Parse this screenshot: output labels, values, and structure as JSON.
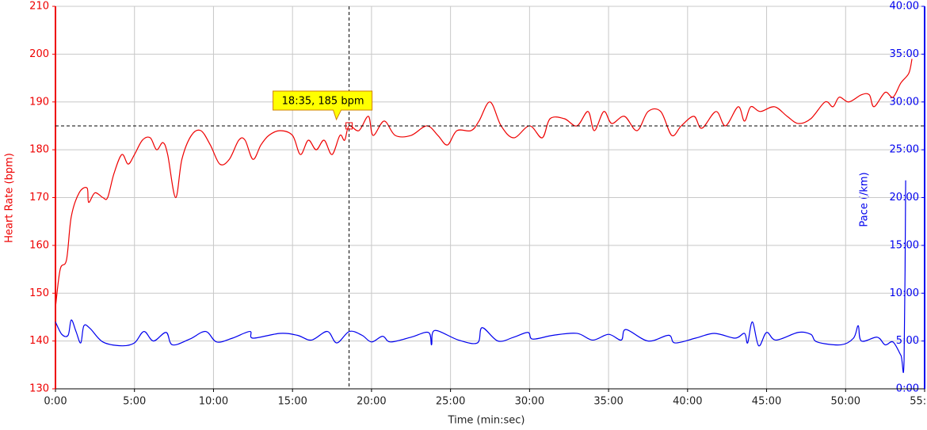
{
  "chart_data": {
    "type": "line",
    "x_label": "Time (min:sec)",
    "y_label": "Heart Rate (bpm)",
    "y2_label": "Pace (/km)",
    "xlim": [
      0,
      55
    ],
    "xticks": [
      {
        "value": 0,
        "label": "0:00"
      },
      {
        "value": 5,
        "label": "5:00"
      },
      {
        "value": 10,
        "label": "10:00"
      },
      {
        "value": 15,
        "label": "15:00"
      },
      {
        "value": 20,
        "label": "20:00"
      },
      {
        "value": 25,
        "label": "25:00"
      },
      {
        "value": 30,
        "label": "30:00"
      },
      {
        "value": 35,
        "label": "35:00"
      },
      {
        "value": 40,
        "label": "40:00"
      },
      {
        "value": 45,
        "label": "45:00"
      },
      {
        "value": 50,
        "label": "50:00"
      },
      {
        "value": 55,
        "label": "55:00"
      }
    ],
    "ylim": [
      130,
      210
    ],
    "yticks": [
      130,
      140,
      150,
      160,
      170,
      180,
      190,
      200,
      210
    ],
    "y2lim": [
      0,
      40
    ],
    "y2ticks": [
      {
        "value": 0,
        "label": "0:00"
      },
      {
        "value": 5,
        "label": "5:00"
      },
      {
        "value": 10,
        "label": "10:00"
      },
      {
        "value": 15,
        "label": "15:00"
      },
      {
        "value": 20,
        "label": "20:00"
      },
      {
        "value": 25,
        "label": "25:00"
      },
      {
        "value": 30,
        "label": "30:00"
      },
      {
        "value": 35,
        "label": "35:00"
      },
      {
        "value": 40,
        "label": "40:00"
      }
    ],
    "grid": true,
    "series": [
      {
        "name": "Heart Rate",
        "color": "#ee0000",
        "x": [
          0,
          0.3,
          0.7,
          1.0,
          1.5,
          2.0,
          2.1,
          2.5,
          3.0,
          3.3,
          3.7,
          4.2,
          4.6,
          5.0,
          5.5,
          6.0,
          6.4,
          6.8,
          7.1,
          7.6,
          8.0,
          8.6,
          9.2,
          9.8,
          10.4,
          11.0,
          11.6,
          12.0,
          12.5,
          13.0,
          13.5,
          14.2,
          15.0,
          15.5,
          16.0,
          16.5,
          17.0,
          17.5,
          18.0,
          18.3,
          18.58,
          19.2,
          19.8,
          20.1,
          20.8,
          21.5,
          22.5,
          23.5,
          24.2,
          24.8,
          25.4,
          26.3,
          26.8,
          27.5,
          28.2,
          29.0,
          30.0,
          30.8,
          31.3,
          32.2,
          33.0,
          33.7,
          34.1,
          34.7,
          35.2,
          36.0,
          36.8,
          37.5,
          38.3,
          39.0,
          39.6,
          40.4,
          40.9,
          41.8,
          42.4,
          43.2,
          43.6,
          44.0,
          44.6,
          45.5,
          46.3,
          47.0,
          47.8,
          48.7,
          49.2,
          49.6,
          50.2,
          51.0,
          51.5,
          51.8,
          52.5,
          53.0,
          53.5,
          54.0,
          54.2
        ],
        "values": [
          147,
          155,
          157,
          166,
          171,
          172,
          169,
          171,
          170,
          170,
          175,
          179,
          177,
          179,
          182,
          182.5,
          180,
          181.5,
          179,
          170,
          178,
          183,
          184,
          181,
          177,
          178,
          182,
          182,
          178,
          181,
          183,
          184,
          183,
          179,
          182,
          180,
          182,
          179,
          183,
          182,
          185,
          184,
          187,
          183,
          186,
          183,
          183,
          185,
          183,
          181,
          184,
          184,
          186,
          190,
          185,
          182.5,
          185,
          182.5,
          186.5,
          186.5,
          185,
          188,
          184,
          188,
          185.5,
          187,
          184,
          188,
          188,
          183,
          185,
          187,
          184.5,
          188,
          185,
          189,
          186,
          189,
          188,
          189,
          187,
          185.5,
          186.5,
          190,
          189,
          191,
          190,
          191.5,
          191.5,
          189,
          192,
          191,
          194,
          196,
          199
        ]
      },
      {
        "name": "Pace",
        "color": "#0000ee",
        "axis": "y2",
        "x": [
          0,
          0.4,
          0.8,
          1.0,
          1.3,
          1.6,
          1.8,
          2.2,
          3.0,
          4.2,
          5.0,
          5.6,
          6.2,
          7.0,
          7.4,
          8.5,
          9.5,
          10.2,
          11.2,
          12.3,
          12.5,
          14.2,
          15.3,
          16.2,
          17.2,
          17.8,
          18.6,
          19.4,
          20.0,
          20.7,
          21.2,
          22.5,
          23.6,
          23.8,
          24.0,
          25.5,
          26.7,
          27.0,
          28.0,
          29.0,
          29.9,
          30.2,
          31.5,
          33.0,
          34.0,
          35.0,
          35.8,
          36.1,
          37.5,
          38.8,
          39.2,
          40.5,
          41.7,
          43.0,
          43.6,
          43.8,
          44.1,
          44.5,
          45.0,
          45.6,
          47.0,
          47.8,
          48.2,
          49.7,
          50.5,
          50.8,
          51.0,
          52.0,
          52.5,
          53.0,
          53.5,
          53.7,
          53.8
        ],
        "values": [
          7.0,
          5.7,
          5.6,
          7.2,
          6.0,
          4.8,
          6.6,
          6.3,
          4.9,
          4.5,
          4.8,
          6.0,
          5.0,
          5.9,
          4.6,
          5.2,
          6.0,
          4.9,
          5.3,
          6.0,
          5.3,
          5.8,
          5.6,
          5.1,
          6.0,
          4.8,
          6.0,
          5.6,
          4.9,
          5.5,
          4.9,
          5.4,
          5.9,
          4.6,
          6.1,
          5.1,
          4.8,
          6.4,
          5.0,
          5.4,
          5.9,
          5.2,
          5.6,
          5.8,
          5.1,
          5.7,
          5.1,
          6.2,
          5.0,
          5.6,
          4.8,
          5.3,
          5.8,
          5.3,
          5.8,
          4.8,
          7.0,
          4.5,
          5.9,
          5.1,
          5.9,
          5.7,
          4.9,
          4.6,
          5.3,
          6.6,
          5.0,
          5.4,
          4.6,
          4.9,
          3.5,
          3.0,
          21.8
        ]
      }
    ],
    "cursor": {
      "x": 18.58,
      "y": 185,
      "label": "18:35, 185 bpm"
    }
  }
}
